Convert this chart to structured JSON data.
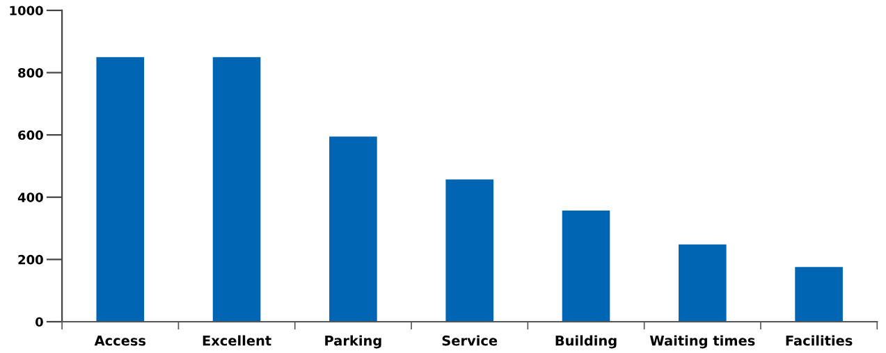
{
  "chart_data": {
    "type": "bar",
    "categories": [
      "Access",
      "Excellent",
      "Parking",
      "Service",
      "Building",
      "Waiting times",
      "Facilities"
    ],
    "values": [
      850,
      850,
      595,
      457,
      357,
      248,
      176
    ],
    "color": "#0066b3",
    "ylim": [
      0,
      1000
    ],
    "yticks": [
      0,
      200,
      400,
      600,
      800,
      1000
    ],
    "grid": false
  }
}
